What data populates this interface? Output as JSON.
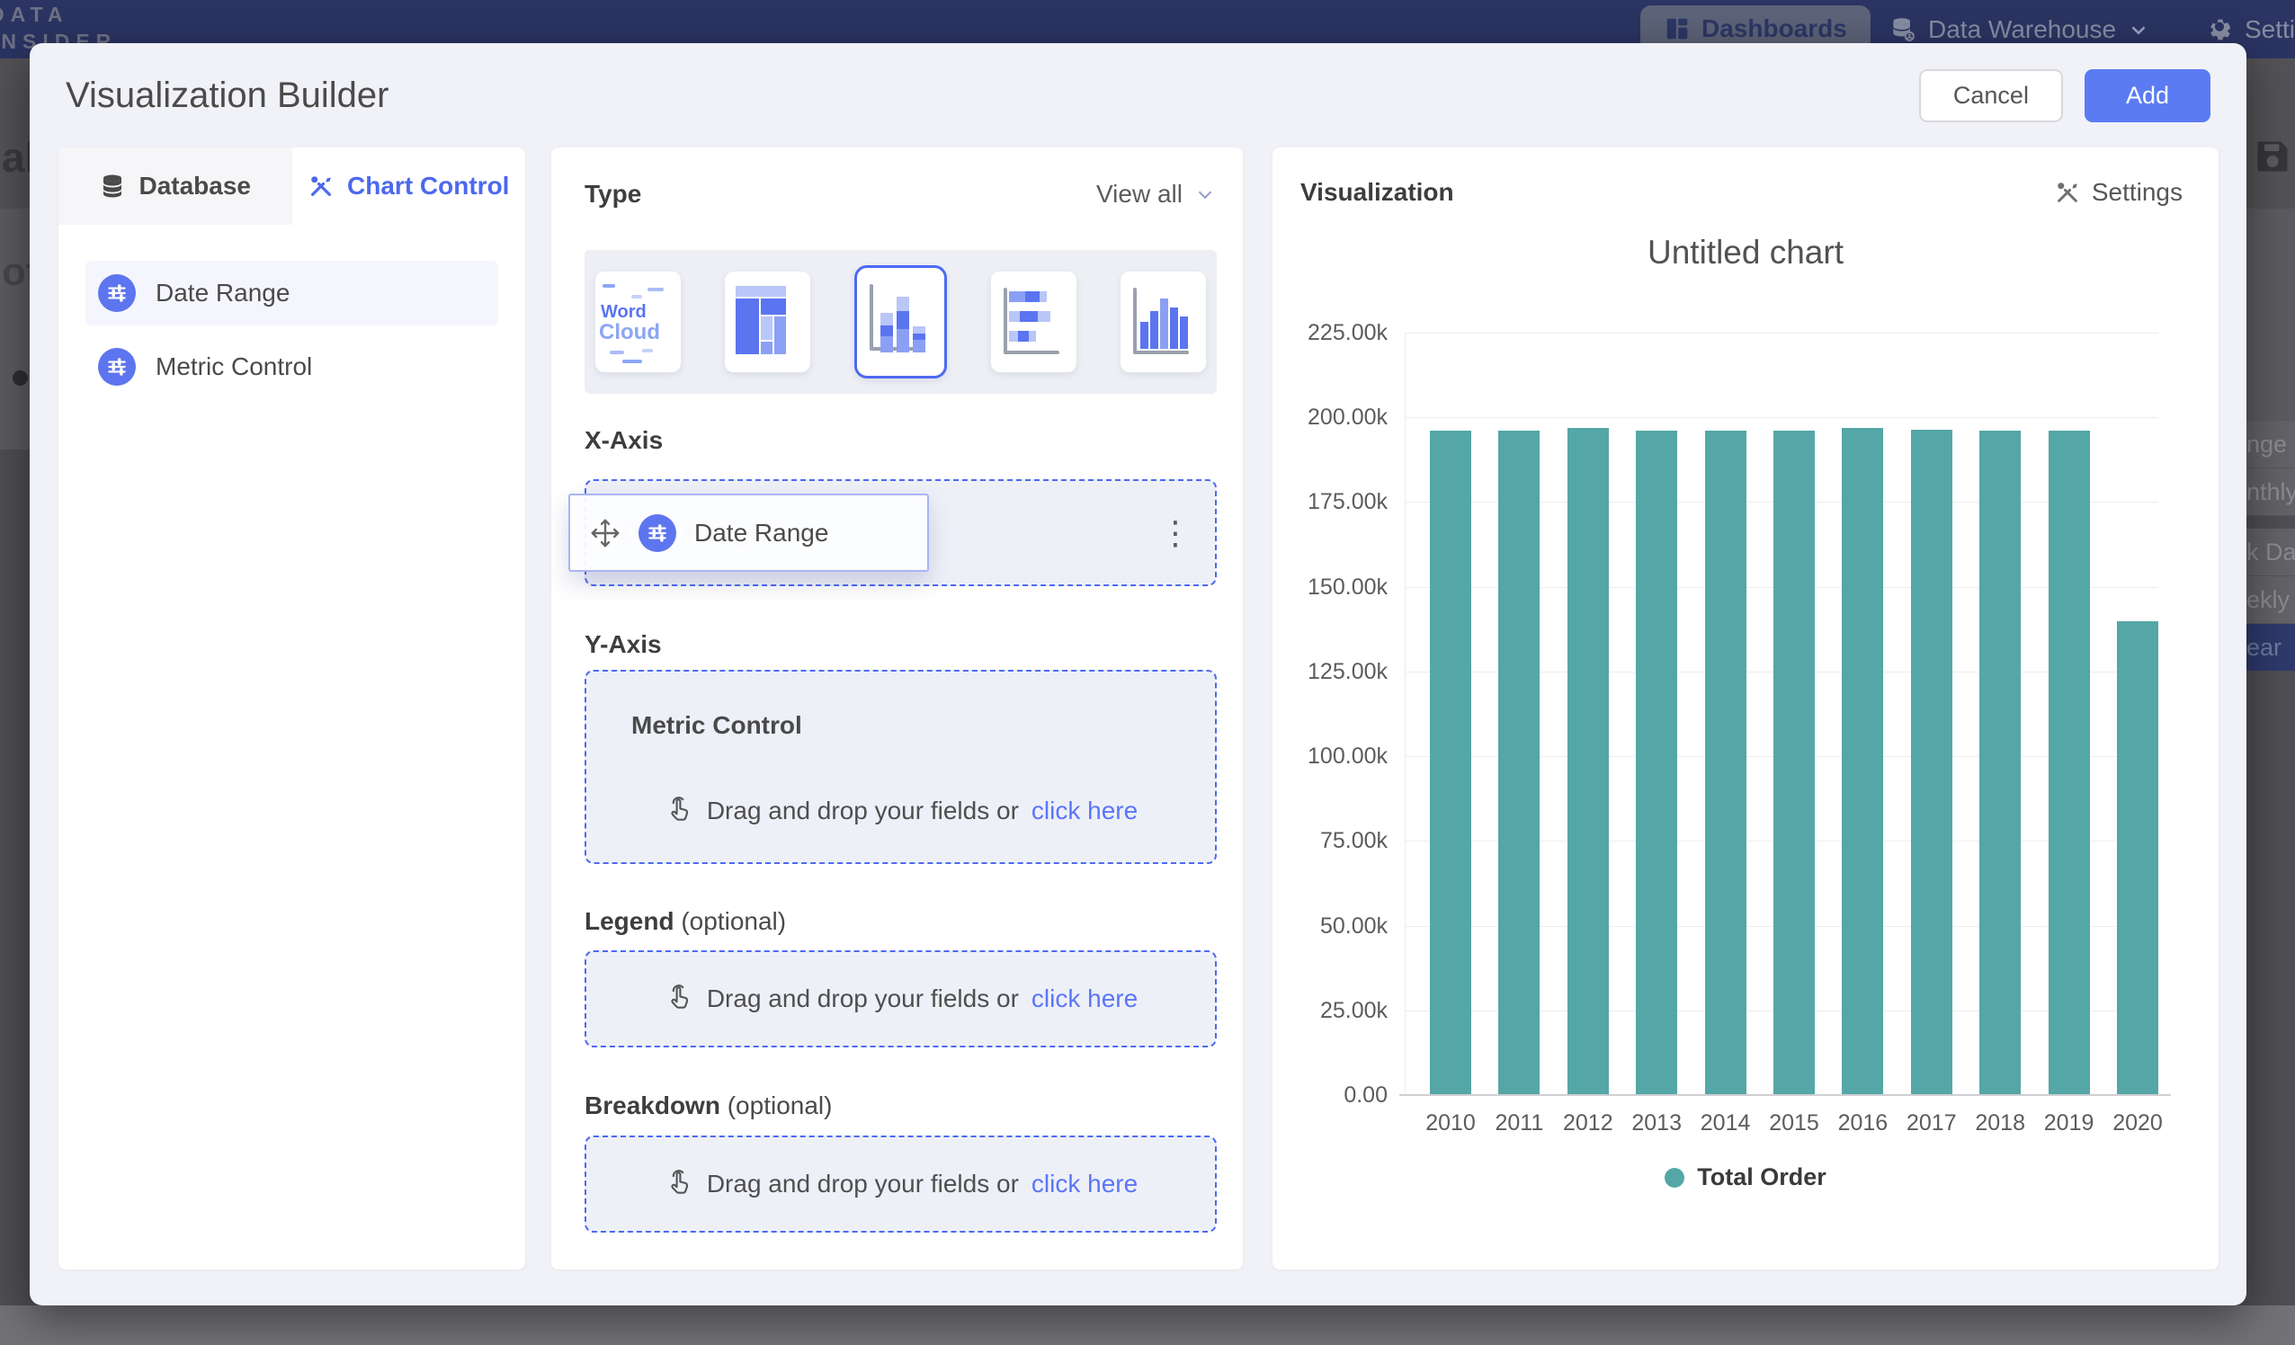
{
  "navbar": {
    "logo": {
      "line1": "DATA",
      "line2": "INSIDER"
    },
    "dashboards_label": "Dashboards",
    "data_warehouse_label": "Data Warehouse",
    "settings_label": "Settings"
  },
  "background": {
    "left_fragments": {
      "f1": "al",
      "f2": "ota"
    },
    "right_fragments": {
      "r1": "nge",
      "r2": "nthly",
      "r3": "k Date",
      "r4": "ekly",
      "r5": "ear"
    }
  },
  "modal": {
    "title": "Visualization Builder",
    "cancel_label": "Cancel",
    "add_label": "Add"
  },
  "left_panel": {
    "tabs": [
      {
        "label": "Database",
        "active": false
      },
      {
        "label": "Chart Control",
        "active": true
      }
    ],
    "fields": [
      {
        "label": "Date Range"
      },
      {
        "label": "Metric Control"
      }
    ]
  },
  "builder": {
    "type_label": "Type",
    "view_all_label": "View all",
    "word_cloud_thumb": {
      "line1": "Word",
      "line2": "Cloud"
    },
    "x_axis": {
      "label": "X-Axis",
      "chip_label": "Date Range",
      "ghost_label": "Date Range"
    },
    "y_axis": {
      "label": "Y-Axis",
      "placeholder_title": "Metric Control"
    },
    "legend": {
      "label": "Legend",
      "suffix": "(optional)"
    },
    "breakdown": {
      "label": "Breakdown",
      "suffix": "(optional)"
    },
    "drop_text": "Drag and drop your fields or",
    "drop_link_text": "click here"
  },
  "visualization": {
    "panel_title": "Visualization",
    "settings_label": "Settings"
  },
  "chart_data": {
    "type": "bar",
    "title": "Untitled chart",
    "categories": [
      "2010",
      "2011",
      "2012",
      "2013",
      "2014",
      "2015",
      "2016",
      "2017",
      "2018",
      "2019",
      "2020"
    ],
    "series": [
      {
        "name": "Total Order",
        "color": "#54A7A6",
        "values": [
          195900,
          195900,
          196700,
          195900,
          195900,
          195900,
          196700,
          196100,
          195900,
          195900,
          139600
        ]
      }
    ],
    "xlabel": "",
    "ylabel": "",
    "ylim": [
      0,
      225000
    ],
    "ytick_step": 25000,
    "ytick_labels": [
      "0.00",
      "25.00k",
      "50.00k",
      "75.00k",
      "100.00k",
      "125.00k",
      "150.00k",
      "175.00k",
      "200.00k",
      "225.00k"
    ],
    "grid": true,
    "legend_position": "bottom"
  }
}
